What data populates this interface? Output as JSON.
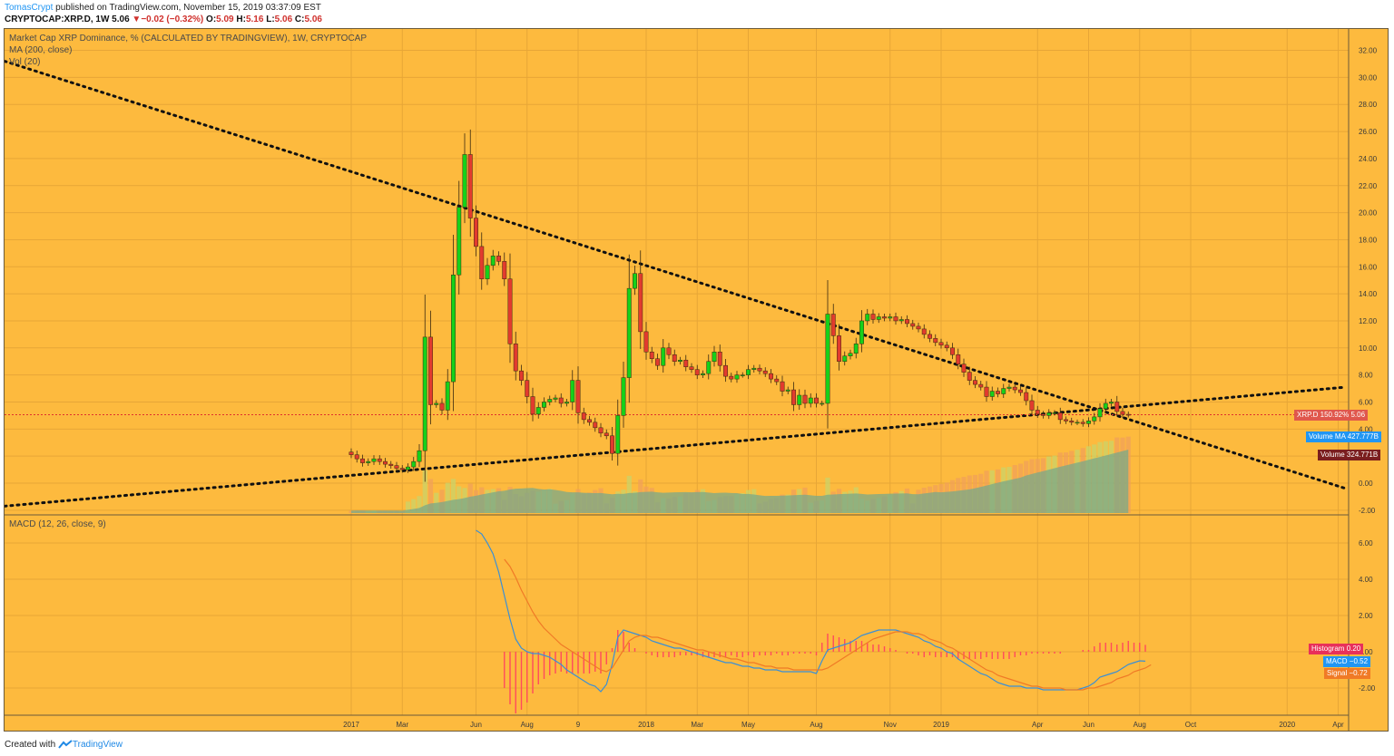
{
  "header": {
    "user": "TomasCrypt",
    "published": " published on TradingView.com, November 15, 2019 03:37:09 EST",
    "symbol": "CRYPTOCAP:XRP.D, 1W",
    "last": "5.06",
    "change": "−0.02 (−0.32%)",
    "ohlc": {
      "o": "5.09",
      "h": "5.16",
      "l": "5.06",
      "c": "5.06"
    }
  },
  "legend": {
    "title": "Market Cap XRP Dominance, % (CALCULATED BY TRADINGVIEW), 1W, CRYPTOCAP",
    "ma": "MA (200, close)",
    "vol": "Vol (20)",
    "macd": "MACD (12, 26, close, 9)"
  },
  "badges": {
    "price": "XRP.D 150.92%",
    "price_val": "5.06",
    "volma": "Volume MA",
    "volma_val": "427.777B",
    "vol": "Volume",
    "vol_val": "324.771B",
    "hist": "Histogram",
    "hist_val": "0.20",
    "macd": "MACD",
    "macd_val": "−0.52",
    "signal": "Signal",
    "signal_val": "−0.72"
  },
  "footer": {
    "text": "Created with",
    "brand": "TradingView"
  },
  "colors": {
    "background": "#fdba3e",
    "up": "#16d11a",
    "down": "#e23b2e",
    "volume_ma_fill": "#7aa88a",
    "macd_line": "#3a8fd6",
    "signal_line": "#f07a26",
    "histogram": "#ff4a5c",
    "price_line": "#e0312d",
    "trendline": "#111111"
  },
  "chart_data": [
    {
      "type": "candlestick",
      "title": "Market Cap XRP Dominance, % (CALCULATED BY TRADINGVIEW), 1W, CRYPTOCAP",
      "y_ticks": [
        "-2.00",
        "0.00",
        "2.00",
        "4.00",
        "6.00",
        "8.00",
        "10.00",
        "12.00",
        "14.00",
        "16.00",
        "18.00",
        "20.00",
        "22.00",
        "24.00",
        "26.00",
        "28.00",
        "30.00",
        "32.00"
      ],
      "ylim": [
        -2,
        33
      ],
      "x_ticks": [
        "2017",
        "Mar",
        "Jun",
        "Aug",
        "9",
        "2018",
        "Mar",
        "May",
        "Aug",
        "Nov",
        "2019",
        "Apr",
        "Jun",
        "Aug",
        "Oct",
        "2020",
        "Apr"
      ],
      "x_tick_weeks": [
        0,
        9,
        22,
        31,
        40,
        52,
        61,
        70,
        82,
        95,
        104,
        121,
        130,
        139,
        148,
        165,
        174
      ],
      "last_price": 5.06,
      "candles_close": [
        2.1,
        1.8,
        1.5,
        1.6,
        1.8,
        1.6,
        1.4,
        1.3,
        1.1,
        1.0,
        1.2,
        1.6,
        2.4,
        10.8,
        5.8,
        5.9,
        5.4,
        7.5,
        15.4,
        20.4,
        24.3,
        19.6,
        17.5,
        15.1,
        16.1,
        16.8,
        16.4,
        15.1,
        10.3,
        8.3,
        7.6,
        6.4,
        5.1,
        5.6,
        6.0,
        6.2,
        6.3,
        5.9,
        6.0,
        7.6,
        5.2,
        4.7,
        4.5,
        4.1,
        3.7,
        3.5,
        2.2,
        5.0,
        7.8,
        14.4,
        15.5,
        11.2,
        9.7,
        9.2,
        8.7,
        10.0,
        9.5,
        9.0,
        9.1,
        8.6,
        8.4,
        8.0,
        8.1,
        9.0,
        9.7,
        8.7,
        7.9,
        7.7,
        8.0,
        8.0,
        8.4,
        8.5,
        8.3,
        8.1,
        7.7,
        7.5,
        6.8,
        6.9,
        5.8,
        6.5,
        5.9,
        6.3,
        5.9,
        5.9,
        12.5,
        10.9,
        9.0,
        9.4,
        9.6,
        10.3,
        12.0,
        12.5,
        12.1,
        12.3,
        12.2,
        12.3,
        12.0,
        12.1,
        11.8,
        11.6,
        11.4,
        11.0,
        10.7,
        10.4,
        10.2,
        10.0,
        9.5,
        8.8,
        8.2,
        7.6,
        7.3,
        7.1,
        6.4,
        6.8,
        6.6,
        7.0,
        7.1,
        6.9,
        6.7,
        6.1,
        5.4,
        5.1,
        5.0,
        5.2,
        5.2,
        4.7,
        4.6,
        4.5,
        4.5,
        4.4,
        4.6,
        4.9,
        5.5,
        5.9,
        6.0,
        5.3,
        5.09,
        5.06
      ],
      "volume_ma_level_rel": [
        0.0,
        0.2,
        0.6,
        1.0
      ],
      "volume_latest": "324.771B",
      "volume_ma_latest": "427.777B"
    },
    {
      "type": "line",
      "title": "MACD (12, 26, close, 9)",
      "y_ticks": [
        "-2.00",
        "0.00",
        "2.00",
        "4.00",
        "6.00"
      ],
      "ylim": [
        -3.2,
        7.4
      ],
      "series": [
        {
          "name": "MACD",
          "latest": -0.52,
          "start_week": 22,
          "values": [
            6.7,
            6.5,
            6.0,
            5.4,
            4.4,
            3.1,
            1.8,
            0.7,
            0.2,
            0.0,
            -0.1,
            -0.1,
            -0.2,
            -0.3,
            -0.5,
            -0.7,
            -1.0,
            -1.2,
            -1.4,
            -1.6,
            -1.8,
            -1.9,
            -2.2,
            -1.8,
            -0.7,
            0.8,
            1.2,
            1.1,
            1.0,
            0.9,
            0.8,
            0.6,
            0.5,
            0.4,
            0.3,
            0.2,
            0.2,
            0.1,
            0.0,
            -0.1,
            -0.2,
            -0.3,
            -0.4,
            -0.5,
            -0.6,
            -0.6,
            -0.7,
            -0.8,
            -0.8,
            -0.9,
            -0.9,
            -1.0,
            -1.0,
            -1.0,
            -1.1,
            -1.1,
            -1.1,
            -1.1,
            -1.1,
            -1.1,
            -1.2,
            -0.5,
            0.1,
            0.2,
            0.3,
            0.4,
            0.5,
            0.7,
            0.9,
            1.0,
            1.1,
            1.2,
            1.2,
            1.2,
            1.2,
            1.1,
            1.0,
            0.9,
            0.8,
            0.6,
            0.5,
            0.3,
            0.2,
            0.0,
            -0.1,
            -0.4,
            -0.6,
            -0.8,
            -1.0,
            -1.2,
            -1.3,
            -1.5,
            -1.7,
            -1.8,
            -1.9,
            -1.9,
            -1.9,
            -2.0,
            -2.0,
            -2.0,
            -2.1,
            -2.1,
            -2.1,
            -2.1,
            -2.1,
            -2.1,
            -2.1,
            -2.0,
            -1.9,
            -1.7,
            -1.4,
            -1.3,
            -1.2,
            -1.1,
            -0.9,
            -0.7,
            -0.6,
            -0.5,
            -0.52
          ]
        },
        {
          "name": "Signal",
          "latest": -0.72,
          "start_week": 27,
          "values": [
            5.1,
            4.7,
            4.1,
            3.4,
            2.8,
            2.2,
            1.7,
            1.3,
            1.0,
            0.7,
            0.4,
            0.2,
            0.0,
            -0.2,
            -0.4,
            -0.6,
            -0.8,
            -1.0,
            -1.1,
            -0.9,
            -0.4,
            0.1,
            0.6,
            0.8,
            0.9,
            0.9,
            0.8,
            0.8,
            0.7,
            0.6,
            0.5,
            0.4,
            0.3,
            0.2,
            0.1,
            0.1,
            0.0,
            -0.1,
            -0.2,
            -0.3,
            -0.4,
            -0.4,
            -0.5,
            -0.6,
            -0.6,
            -0.7,
            -0.8,
            -0.8,
            -0.9,
            -0.9,
            -0.9,
            -1.0,
            -1.0,
            -1.0,
            -1.0,
            -1.0,
            -1.0,
            -0.9,
            -0.7,
            -0.5,
            -0.3,
            -0.1,
            0.1,
            0.3,
            0.5,
            0.7,
            0.8,
            0.9,
            1.0,
            1.1,
            1.1,
            1.1,
            1.0,
            1.0,
            0.9,
            0.7,
            0.6,
            0.5,
            0.3,
            0.2,
            0.0,
            -0.2,
            -0.4,
            -0.6,
            -0.8,
            -1.0,
            -1.1,
            -1.3,
            -1.4,
            -1.5,
            -1.6,
            -1.7,
            -1.8,
            -1.9,
            -1.9,
            -2.0,
            -2.0,
            -2.0,
            -2.0,
            -2.1,
            -2.1,
            -2.1,
            -2.1,
            -2.0,
            -2.0,
            -1.9,
            -1.8,
            -1.7,
            -1.5,
            -1.4,
            -1.3,
            -1.1,
            -1.0,
            -0.9,
            -0.72
          ]
        },
        {
          "name": "Histogram",
          "latest": 0.2
        }
      ]
    }
  ]
}
